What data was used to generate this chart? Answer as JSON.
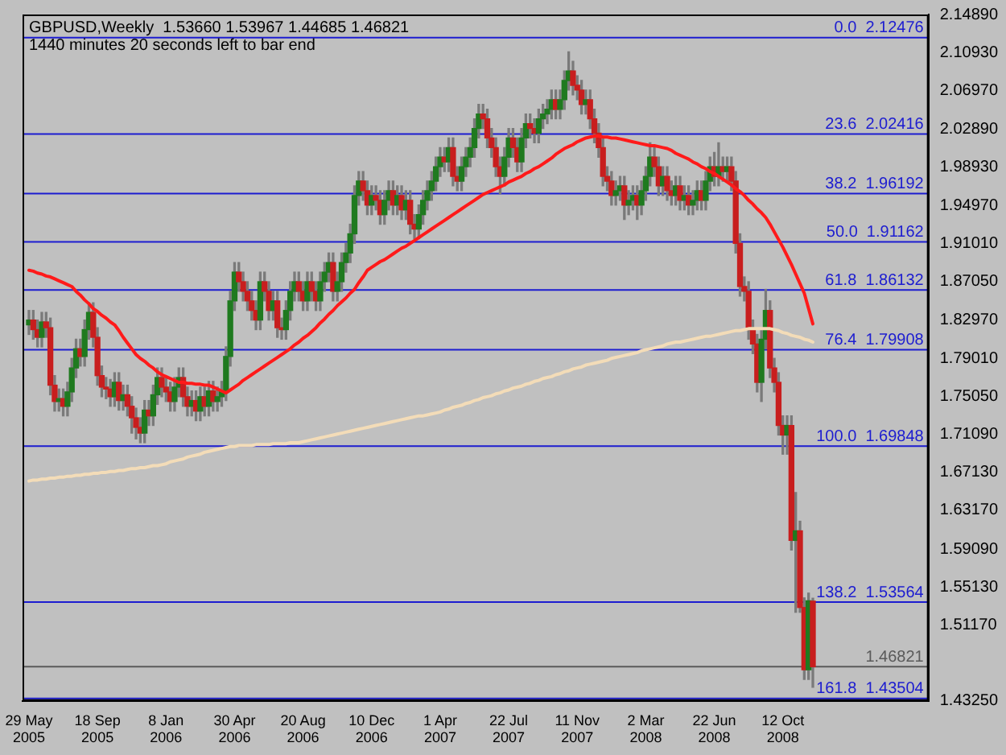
{
  "chart_data": {
    "type": "candlestick",
    "title": "GBPUSD,Weekly  1.53660 1.53967 1.44685 1.46821",
    "subtitle": "1440 minutes 20 seconds left to bar end",
    "categories": [
      "29 May 2005",
      null,
      null,
      null,
      null,
      null,
      null,
      null,
      null,
      null,
      null,
      null,
      null,
      null,
      null,
      null,
      "18 Sep 2005",
      null,
      null,
      null,
      null,
      null,
      null,
      null,
      null,
      null,
      null,
      null,
      null,
      null,
      null,
      null,
      "8 Jan 2006",
      null,
      null,
      null,
      null,
      null,
      null,
      null,
      null,
      null,
      null,
      null,
      null,
      null,
      null,
      null,
      "30 Apr 2006",
      null,
      null,
      null,
      null,
      null,
      null,
      null,
      null,
      null,
      null,
      null,
      null,
      null,
      null,
      null,
      "20 Aug 2006",
      null,
      null,
      null,
      null,
      null,
      null,
      null,
      null,
      null,
      null,
      null,
      null,
      null,
      null,
      null,
      "10 Dec 2006",
      null,
      null,
      null,
      null,
      null,
      null,
      null,
      null,
      null,
      null,
      null,
      null,
      null,
      null,
      null,
      "1 Apr 2007",
      null,
      null,
      null,
      null,
      null,
      null,
      null,
      null,
      null,
      null,
      null,
      null,
      null,
      null,
      null,
      "22 Jul 2007",
      null,
      null,
      null,
      null,
      null,
      null,
      null,
      null,
      null,
      null,
      null,
      null,
      null,
      null,
      null,
      "11 Nov 2007",
      null,
      null,
      null,
      null,
      null,
      null,
      null,
      null,
      null,
      null,
      null,
      null,
      null,
      null,
      null,
      "2 Mar 2008",
      null,
      null,
      null,
      null,
      null,
      null,
      null,
      null,
      null,
      null,
      null,
      null,
      null,
      null,
      null,
      "22 Jun 2008",
      null,
      null,
      null,
      null,
      null,
      null,
      null,
      null,
      null,
      null,
      null,
      null,
      null,
      null,
      null,
      "12 Oct 2008",
      null,
      null,
      null,
      null,
      null,
      null,
      null
    ],
    "series": [
      {
        "ohlc": [
          [
            1.825,
            1.84,
            1.815,
            1.83
          ],
          [
            1.83,
            1.84,
            1.81,
            1.82
          ],
          [
            1.82,
            1.83,
            1.802,
            1.812
          ],
          [
            1.812,
            1.838,
            1.802,
            1.828
          ],
          [
            1.828,
            1.838,
            1.812,
            1.822
          ],
          [
            1.822,
            1.832,
            1.752,
            1.762
          ],
          [
            1.762,
            1.772,
            1.735,
            1.745
          ],
          [
            1.745,
            1.758,
            1.735,
            1.748
          ],
          [
            1.748,
            1.758,
            1.73,
            1.74
          ],
          [
            1.74,
            1.765,
            1.73,
            1.755
          ],
          [
            1.755,
            1.79,
            1.745,
            1.78
          ],
          [
            1.78,
            1.81,
            1.77,
            1.8
          ],
          [
            1.8,
            1.81,
            1.782,
            1.792
          ],
          [
            1.792,
            1.83,
            1.782,
            1.82
          ],
          [
            1.82,
            1.848,
            1.81,
            1.838
          ],
          [
            1.838,
            1.848,
            1.802,
            1.812
          ],
          [
            1.812,
            1.822,
            1.762,
            1.772
          ],
          [
            1.772,
            1.782,
            1.75,
            1.76
          ],
          [
            1.76,
            1.77,
            1.748,
            1.758
          ],
          [
            1.758,
            1.768,
            1.74,
            1.75
          ],
          [
            1.75,
            1.775,
            1.74,
            1.765
          ],
          [
            1.765,
            1.775,
            1.736,
            1.746
          ],
          [
            1.746,
            1.762,
            1.736,
            1.752
          ],
          [
            1.752,
            1.762,
            1.73,
            1.74
          ],
          [
            1.74,
            1.75,
            1.712,
            1.728
          ],
          [
            1.728,
            1.738,
            1.706,
            1.718
          ],
          [
            1.718,
            1.728,
            1.702,
            1.712
          ],
          [
            1.712,
            1.746,
            1.702,
            1.736
          ],
          [
            1.736,
            1.746,
            1.72,
            1.73
          ],
          [
            1.73,
            1.762,
            1.72,
            1.752
          ],
          [
            1.752,
            1.78,
            1.742,
            1.77
          ],
          [
            1.77,
            1.78,
            1.75,
            1.76
          ],
          [
            1.76,
            1.77,
            1.745,
            1.755
          ],
          [
            1.755,
            1.765,
            1.735,
            1.745
          ],
          [
            1.745,
            1.77,
            1.735,
            1.76
          ],
          [
            1.76,
            1.78,
            1.75,
            1.77
          ],
          [
            1.77,
            1.78,
            1.74,
            1.75
          ],
          [
            1.75,
            1.76,
            1.73,
            1.74
          ],
          [
            1.74,
            1.756,
            1.73,
            1.746
          ],
          [
            1.746,
            1.756,
            1.725,
            1.735
          ],
          [
            1.735,
            1.76,
            1.725,
            1.75
          ],
          [
            1.75,
            1.76,
            1.73,
            1.74
          ],
          [
            1.74,
            1.766,
            1.73,
            1.756
          ],
          [
            1.756,
            1.766,
            1.735,
            1.745
          ],
          [
            1.745,
            1.76,
            1.735,
            1.75
          ],
          [
            1.75,
            1.766,
            1.74,
            1.756
          ],
          [
            1.756,
            1.802,
            1.746,
            1.792
          ],
          [
            1.792,
            1.86,
            1.782,
            1.85
          ],
          [
            1.85,
            1.89,
            1.84,
            1.88
          ],
          [
            1.88,
            1.89,
            1.86,
            1.87
          ],
          [
            1.87,
            1.88,
            1.85,
            1.86
          ],
          [
            1.86,
            1.87,
            1.84,
            1.85
          ],
          [
            1.85,
            1.86,
            1.83,
            1.84
          ],
          [
            1.84,
            1.85,
            1.82,
            1.83
          ],
          [
            1.83,
            1.88,
            1.82,
            1.87
          ],
          [
            1.87,
            1.88,
            1.85,
            1.86
          ],
          [
            1.86,
            1.87,
            1.83,
            1.84
          ],
          [
            1.84,
            1.86,
            1.83,
            1.85
          ],
          [
            1.85,
            1.86,
            1.812,
            1.822
          ],
          [
            1.822,
            1.832,
            1.81,
            1.82
          ],
          [
            1.82,
            1.85,
            1.81,
            1.84
          ],
          [
            1.84,
            1.87,
            1.83,
            1.86
          ],
          [
            1.86,
            1.88,
            1.85,
            1.87
          ],
          [
            1.87,
            1.88,
            1.85,
            1.86
          ],
          [
            1.86,
            1.87,
            1.84,
            1.85
          ],
          [
            1.85,
            1.88,
            1.84,
            1.87
          ],
          [
            1.87,
            1.88,
            1.85,
            1.86
          ],
          [
            1.86,
            1.87,
            1.84,
            1.85
          ],
          [
            1.85,
            1.88,
            1.84,
            1.87
          ],
          [
            1.87,
            1.89,
            1.86,
            1.88
          ],
          [
            1.88,
            1.9,
            1.87,
            1.89
          ],
          [
            1.89,
            1.9,
            1.85,
            1.86
          ],
          [
            1.86,
            1.88,
            1.85,
            1.87
          ],
          [
            1.87,
            1.9,
            1.86,
            1.89
          ],
          [
            1.89,
            1.91,
            1.88,
            1.9
          ],
          [
            1.9,
            1.93,
            1.89,
            1.92
          ],
          [
            1.92,
            1.97,
            1.91,
            1.96
          ],
          [
            1.96,
            1.985,
            1.95,
            1.975
          ],
          [
            1.975,
            1.985,
            1.955,
            1.965
          ],
          [
            1.965,
            1.975,
            1.94,
            1.95
          ],
          [
            1.95,
            1.97,
            1.94,
            1.96
          ],
          [
            1.96,
            1.97,
            1.945,
            1.955
          ],
          [
            1.955,
            1.965,
            1.93,
            1.94
          ],
          [
            1.94,
            1.965,
            1.93,
            1.955
          ],
          [
            1.955,
            1.975,
            1.945,
            1.965
          ],
          [
            1.965,
            1.975,
            1.94,
            1.95
          ],
          [
            1.95,
            1.97,
            1.94,
            1.96
          ],
          [
            1.96,
            1.97,
            1.935,
            1.945
          ],
          [
            1.945,
            1.965,
            1.935,
            1.955
          ],
          [
            1.955,
            1.965,
            1.92,
            1.93
          ],
          [
            1.93,
            1.94,
            1.915,
            1.925
          ],
          [
            1.925,
            1.95,
            1.915,
            1.94
          ],
          [
            1.94,
            1.965,
            1.93,
            1.955
          ],
          [
            1.955,
            1.975,
            1.945,
            1.965
          ],
          [
            1.965,
            1.985,
            1.955,
            1.975
          ],
          [
            1.975,
            2.0,
            1.965,
            1.99
          ],
          [
            1.99,
            2.01,
            1.98,
            2.0
          ],
          [
            2.0,
            2.01,
            1.985,
            1.995
          ],
          [
            1.995,
            2.02,
            1.985,
            2.01
          ],
          [
            2.01,
            2.02,
            1.97,
            1.98
          ],
          [
            1.98,
            1.99,
            1.965,
            1.975
          ],
          [
            1.975,
            2.0,
            1.965,
            1.99
          ],
          [
            1.99,
            2.01,
            1.98,
            2.0
          ],
          [
            2.0,
            2.02,
            1.99,
            2.01
          ],
          [
            2.01,
            2.04,
            2.0,
            2.03
          ],
          [
            2.03,
            2.055,
            2.02,
            2.045
          ],
          [
            2.045,
            2.055,
            2.03,
            2.04
          ],
          [
            2.04,
            2.05,
            2.01,
            2.02
          ],
          [
            2.02,
            2.03,
            2.0,
            2.01
          ],
          [
            2.01,
            2.02,
            1.98,
            1.99
          ],
          [
            1.99,
            2.0,
            1.962,
            1.98
          ],
          [
            1.98,
            2.01,
            1.97,
            2.0
          ],
          [
            2.0,
            2.03,
            1.99,
            2.02
          ],
          [
            2.02,
            2.03,
            2.0,
            2.01
          ],
          [
            2.01,
            2.02,
            1.985,
            1.995
          ],
          [
            1.995,
            2.03,
            1.985,
            2.02
          ],
          [
            2.02,
            2.045,
            2.01,
            2.035
          ],
          [
            2.035,
            2.045,
            2.02,
            2.03
          ],
          [
            2.03,
            2.04,
            2.015,
            2.025
          ],
          [
            2.025,
            2.05,
            2.015,
            2.04
          ],
          [
            2.04,
            2.055,
            2.03,
            2.045
          ],
          [
            2.045,
            2.06,
            2.035,
            2.05
          ],
          [
            2.05,
            2.07,
            2.04,
            2.06
          ],
          [
            2.06,
            2.07,
            2.04,
            2.05
          ],
          [
            2.05,
            2.07,
            2.04,
            2.06
          ],
          [
            2.06,
            2.09,
            2.05,
            2.08
          ],
          [
            2.08,
            2.11,
            2.07,
            2.09
          ],
          [
            2.09,
            2.1,
            2.065,
            2.075
          ],
          [
            2.075,
            2.085,
            2.06,
            2.07
          ],
          [
            2.07,
            2.08,
            2.045,
            2.055
          ],
          [
            2.055,
            2.07,
            2.045,
            2.06
          ],
          [
            2.06,
            2.07,
            2.03,
            2.04
          ],
          [
            2.04,
            2.05,
            2.015,
            2.025
          ],
          [
            2.025,
            2.035,
            2.0,
            2.01
          ],
          [
            2.01,
            2.02,
            1.97,
            1.98
          ],
          [
            1.98,
            1.99,
            1.965,
            1.975
          ],
          [
            1.975,
            1.985,
            1.95,
            1.96
          ],
          [
            1.96,
            1.975,
            1.95,
            1.965
          ],
          [
            1.965,
            1.98,
            1.955,
            1.97
          ],
          [
            1.97,
            1.98,
            1.935,
            1.95
          ],
          [
            1.95,
            1.965,
            1.94,
            1.955
          ],
          [
            1.955,
            1.97,
            1.945,
            1.96
          ],
          [
            1.96,
            1.97,
            1.935,
            1.95
          ],
          [
            1.95,
            1.975,
            1.94,
            1.965
          ],
          [
            1.965,
            1.99,
            1.955,
            1.98
          ],
          [
            1.98,
            2.015,
            1.97,
            2.0
          ],
          [
            2.0,
            2.01,
            1.98,
            1.99
          ],
          [
            1.99,
            2.0,
            1.96,
            1.97
          ],
          [
            1.97,
            1.99,
            1.96,
            1.98
          ],
          [
            1.98,
            1.99,
            1.955,
            1.965
          ],
          [
            1.965,
            1.975,
            1.95,
            1.96
          ],
          [
            1.96,
            1.98,
            1.95,
            1.97
          ],
          [
            1.97,
            1.98,
            1.945,
            1.955
          ],
          [
            1.955,
            1.97,
            1.945,
            1.96
          ],
          [
            1.96,
            1.97,
            1.94,
            1.95
          ],
          [
            1.95,
            1.965,
            1.94,
            1.955
          ],
          [
            1.955,
            1.975,
            1.945,
            1.965
          ],
          [
            1.965,
            1.975,
            1.945,
            1.955
          ],
          [
            1.955,
            1.985,
            1.945,
            1.975
          ],
          [
            1.975,
            2.0,
            1.965,
            1.99
          ],
          [
            1.99,
            2.005,
            1.97,
            1.98
          ],
          [
            1.98,
            2.015,
            1.97,
            1.99
          ],
          [
            1.99,
            2.0,
            1.975,
            1.985
          ],
          [
            1.985,
            2.0,
            1.975,
            1.99
          ],
          [
            1.99,
            2.0,
            1.965,
            1.975
          ],
          [
            1.975,
            1.985,
            1.9,
            1.91
          ],
          [
            1.91,
            1.92,
            1.855,
            1.865
          ],
          [
            1.865,
            1.875,
            1.85,
            1.86
          ],
          [
            1.86,
            1.87,
            1.81,
            1.82
          ],
          [
            1.82,
            1.83,
            1.795,
            1.805
          ],
          [
            1.805,
            1.815,
            1.755,
            1.765
          ],
          [
            1.765,
            1.82,
            1.745,
            1.81
          ],
          [
            1.81,
            1.862,
            1.8,
            1.84
          ],
          [
            1.84,
            1.85,
            1.77,
            1.78
          ],
          [
            1.78,
            1.79,
            1.755,
            1.765
          ],
          [
            1.765,
            1.775,
            1.71,
            1.72
          ],
          [
            1.72,
            1.73,
            1.69,
            1.71
          ],
          [
            1.71,
            1.73,
            1.69,
            1.72
          ],
          [
            1.72,
            1.73,
            1.59,
            1.6
          ],
          [
            1.6,
            1.65,
            1.525,
            1.61
          ],
          [
            1.61,
            1.62,
            1.525,
            1.53
          ],
          [
            1.53,
            1.54,
            1.455,
            1.465
          ],
          [
            1.465,
            1.545,
            1.455,
            1.537
          ],
          [
            1.5366,
            1.53967,
            1.44685,
            1.46821
          ]
        ]
      },
      {
        "type": "line",
        "color": "#ff1a1a",
        "values": [
          1.882,
          1.881,
          1.879,
          1.878,
          1.876,
          1.875,
          1.873,
          1.871,
          1.869,
          1.867,
          1.865,
          1.86,
          1.856,
          1.851,
          1.847,
          1.842,
          1.839,
          1.835,
          1.832,
          1.828,
          1.825,
          1.819,
          1.812,
          1.806,
          1.8,
          1.794,
          1.79,
          1.787,
          1.783,
          1.78,
          1.776,
          1.773,
          1.771,
          1.769,
          1.767,
          1.765,
          1.765,
          1.764,
          1.764,
          1.763,
          1.763,
          1.762,
          1.762,
          1.76,
          1.758,
          1.756,
          1.754,
          1.757,
          1.76,
          1.763,
          1.767,
          1.77,
          1.773,
          1.776,
          1.779,
          1.782,
          1.785,
          1.788,
          1.791,
          1.794,
          1.797,
          1.8,
          1.804,
          1.807,
          1.811,
          1.814,
          1.818,
          1.822,
          1.827,
          1.831,
          1.836,
          1.84,
          1.845,
          1.849,
          1.853,
          1.858,
          1.862,
          1.869,
          1.875,
          1.882,
          1.885,
          1.888,
          1.891,
          1.893,
          1.896,
          1.899,
          1.902,
          1.905,
          1.907,
          1.91,
          1.913,
          1.916,
          1.919,
          1.922,
          1.925,
          1.928,
          1.931,
          1.934,
          1.937,
          1.94,
          1.943,
          1.946,
          1.949,
          1.952,
          1.955,
          1.958,
          1.961,
          1.963,
          1.965,
          1.967,
          1.969,
          1.971,
          1.974,
          1.976,
          1.978,
          1.98,
          1.983,
          1.985,
          1.988,
          1.99,
          1.993,
          1.996,
          1.999,
          2.003,
          2.006,
          2.009,
          2.011,
          2.013,
          2.016,
          2.018,
          2.02,
          2.021,
          2.022,
          2.022,
          2.021,
          2.021,
          2.02,
          2.02,
          2.019,
          2.018,
          2.017,
          2.016,
          2.015,
          2.014,
          2.013,
          2.012,
          2.012,
          2.011,
          2.01,
          2.009,
          2.007,
          2.004,
          2.002,
          2.0,
          1.998,
          1.995,
          1.993,
          1.99,
          1.988,
          1.985,
          1.983,
          1.98,
          1.977,
          1.974,
          1.971,
          1.967,
          1.964,
          1.96,
          1.955,
          1.951,
          1.946,
          1.942,
          1.937,
          1.93,
          1.922,
          1.914,
          1.906,
          1.897,
          1.888,
          1.878,
          1.868,
          1.858,
          1.842,
          1.826
        ]
      },
      {
        "type": "line",
        "color": "#f3dcb8",
        "values": [
          1.662,
          1.663,
          1.663,
          1.664,
          1.664,
          1.665,
          1.665,
          1.666,
          1.666,
          1.667,
          1.667,
          1.668,
          1.668,
          1.669,
          1.669,
          1.67,
          1.67,
          1.671,
          1.671,
          1.672,
          1.672,
          1.673,
          1.673,
          1.674,
          1.675,
          1.675,
          1.676,
          1.676,
          1.677,
          1.678,
          1.678,
          1.679,
          1.68,
          1.682,
          1.683,
          1.684,
          1.685,
          1.687,
          1.688,
          1.689,
          1.69,
          1.692,
          1.693,
          1.694,
          1.695,
          1.696,
          1.697,
          1.698,
          1.698,
          1.699,
          1.699,
          1.699,
          1.699,
          1.7,
          1.7,
          1.7,
          1.7,
          1.701,
          1.701,
          1.701,
          1.701,
          1.702,
          1.702,
          1.702,
          1.703,
          1.704,
          1.705,
          1.706,
          1.707,
          1.708,
          1.709,
          1.71,
          1.711,
          1.712,
          1.713,
          1.714,
          1.715,
          1.716,
          1.717,
          1.718,
          1.719,
          1.72,
          1.721,
          1.722,
          1.723,
          1.724,
          1.725,
          1.726,
          1.727,
          1.728,
          1.729,
          1.73,
          1.73,
          1.731,
          1.732,
          1.733,
          1.734,
          1.736,
          1.737,
          1.739,
          1.74,
          1.741,
          1.743,
          1.744,
          1.746,
          1.747,
          1.749,
          1.75,
          1.751,
          1.753,
          1.754,
          1.756,
          1.757,
          1.759,
          1.76,
          1.761,
          1.763,
          1.764,
          1.766,
          1.767,
          1.769,
          1.77,
          1.771,
          1.773,
          1.774,
          1.776,
          1.777,
          1.779,
          1.78,
          1.781,
          1.783,
          1.784,
          1.785,
          1.786,
          1.787,
          1.788,
          1.79,
          1.791,
          1.792,
          1.793,
          1.794,
          1.795,
          1.796,
          1.798,
          1.799,
          1.8,
          1.801,
          1.802,
          1.803,
          1.805,
          1.806,
          1.807,
          1.807,
          1.808,
          1.809,
          1.81,
          1.811,
          1.812,
          1.813,
          1.813,
          1.814,
          1.815,
          1.816,
          1.817,
          1.818,
          1.819,
          1.819,
          1.82,
          1.821,
          1.821,
          1.821,
          1.821,
          1.821,
          1.821,
          1.82,
          1.819,
          1.817,
          1.816,
          1.814,
          1.813,
          1.812,
          1.81,
          1.809,
          1.807
        ]
      }
    ],
    "ylim": [
      1.4325,
      2.1489
    ],
    "yticks": [
      {
        "value": 2.1489,
        "label": "2.14890"
      },
      {
        "value": 2.1093,
        "label": "2.10930"
      },
      {
        "value": 2.0697,
        "label": "2.06970"
      },
      {
        "value": 2.0289,
        "label": "2.02890"
      },
      {
        "value": 1.9893,
        "label": "1.98930"
      },
      {
        "value": 1.9497,
        "label": "1.94970"
      },
      {
        "value": 1.9101,
        "label": "1.91010"
      },
      {
        "value": 1.8705,
        "label": "1.87050"
      },
      {
        "value": 1.8297,
        "label": "1.82970"
      },
      {
        "value": 1.7901,
        "label": "1.79010"
      },
      {
        "value": 1.7505,
        "label": "1.75050"
      },
      {
        "value": 1.7109,
        "label": "1.71090"
      },
      {
        "value": 1.6713,
        "label": "1.67130"
      },
      {
        "value": 1.6317,
        "label": "1.63170"
      },
      {
        "value": 1.5909,
        "label": "1.59090"
      },
      {
        "value": 1.5513,
        "label": "1.55130"
      },
      {
        "value": 1.5117,
        "label": "1.51170"
      },
      {
        "value": 1.4325,
        "label": "1.43250"
      }
    ],
    "ref_lines": [
      {
        "axis": "y",
        "value": 2.12476,
        "label": "0.0  2.12476",
        "color": "#1c1cd0"
      },
      {
        "axis": "y",
        "value": 2.02416,
        "label": "23.6  2.02416",
        "color": "#1c1cd0"
      },
      {
        "axis": "y",
        "value": 1.96192,
        "label": "38.2  1.96192",
        "color": "#1c1cd0"
      },
      {
        "axis": "y",
        "value": 1.91162,
        "label": "50.0  1.91162",
        "color": "#1c1cd0"
      },
      {
        "axis": "y",
        "value": 1.86132,
        "label": "61.8  1.86132",
        "color": "#1c1cd0"
      },
      {
        "axis": "y",
        "value": 1.79908,
        "label": "76.4  1.79908",
        "color": "#1c1cd0"
      },
      {
        "axis": "y",
        "value": 1.69848,
        "label": "100.0  1.69848",
        "color": "#1c1cd0"
      },
      {
        "axis": "y",
        "value": 1.53564,
        "label": "138.2  1.53564",
        "color": "#1c1cd0"
      },
      {
        "axis": "y",
        "value": 1.43504,
        "label": "161.8  1.43504",
        "color": "#1c1cd0"
      },
      {
        "axis": "y",
        "value": 1.46821,
        "label": "1.46821",
        "color": "#5a5a5a"
      }
    ],
    "marker": "none"
  }
}
